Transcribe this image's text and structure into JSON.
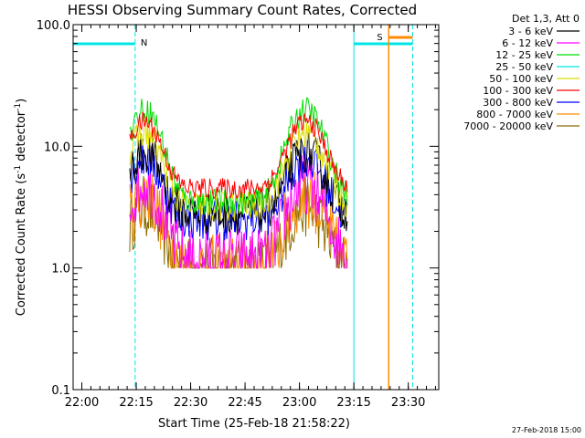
{
  "chart_data": {
    "type": "line",
    "title": "HESSI Observing Summary Count Rates, Corrected",
    "xlabel": "Start Time (25-Feb-18 21:58:22)",
    "ylabel_main": "Corrected Count Rate (s",
    "ylabel_sup1": "-1",
    "ylabel_mid": " detector",
    "ylabel_sup2": "-1",
    "ylabel_end": ")",
    "y_scale": "log",
    "ylim": [
      0.1,
      100.0
    ],
    "xlim_minutes": [
      21.96,
      23.64
    ],
    "x_ticks": [
      {
        "label": "22:00",
        "t": 22.0
      },
      {
        "label": "22:15",
        "t": 22.25
      },
      {
        "label": "22:30",
        "t": 22.5
      },
      {
        "label": "22:45",
        "t": 22.75
      },
      {
        "label": "23:00",
        "t": 23.0
      },
      {
        "label": "23:15",
        "t": 23.25
      },
      {
        "label": "23:30",
        "t": 23.5
      }
    ],
    "y_ticks": [
      {
        "label": "100.0",
        "v": 100
      },
      {
        "label": "10.0",
        "v": 10
      },
      {
        "label": "1.0",
        "v": 1
      },
      {
        "label": "0.1",
        "v": 0.1
      }
    ],
    "legend_header": "Det 1,3, Att 0",
    "legend_placement": "right",
    "series": [
      {
        "name": "3 - 6 keV",
        "color": "#000000"
      },
      {
        "name": "6 - 12 keV",
        "color": "#ff00ff"
      },
      {
        "name": "12 - 25 keV",
        "color": "#00dd00"
      },
      {
        "name": "25 - 50 keV",
        "color": "#00e5e5"
      },
      {
        "name": "50 - 100 keV",
        "color": "#dddd00"
      },
      {
        "name": "100 - 300 keV",
        "color": "#ff0000"
      },
      {
        "name": "300 - 800 keV",
        "color": "#0000ff"
      },
      {
        "name": "800 - 7000 keV",
        "color": "#ff8c00"
      },
      {
        "name": "7000 - 20000 keV",
        "color": "#8b6b00"
      }
    ],
    "annotations": {
      "night_label": "N",
      "saa_label": "S",
      "night_intervals": [
        [
          21.96,
          22.245
        ],
        [
          23.25,
          23.52
        ]
      ],
      "saa_interval": [
        23.41,
        23.52
      ],
      "night_color": "#00e5e5",
      "saa_color": "#ff8c00"
    },
    "footer_date": "27-Feb-2018 15:00"
  }
}
